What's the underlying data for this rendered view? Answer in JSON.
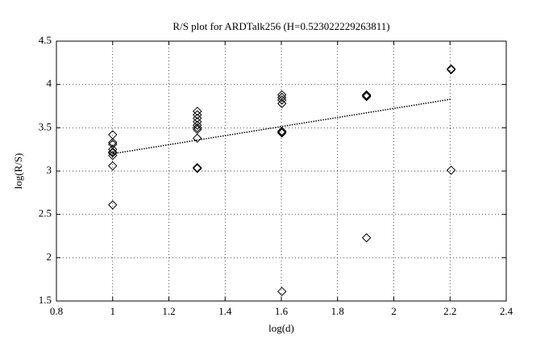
{
  "chart_data": {
    "type": "scatter",
    "title": "R/S plot for ARDTalk256 (H=0.523022229263811)",
    "x_label": "log(d)",
    "y_label": "log(R/S)",
    "xlim": [
      0.8,
      2.4
    ],
    "xticks": [
      0.8,
      1,
      1.2,
      1.4,
      1.6,
      1.8,
      2,
      2.2,
      2.4
    ],
    "ylim": [
      1.5,
      4.5
    ],
    "yticks": [
      1.5,
      2,
      2.5,
      3,
      3.5,
      4,
      4.5
    ],
    "grid": true,
    "series": [
      {
        "type": "scatter",
        "marker": "diamond",
        "color": "#000000",
        "x": [
          1,
          1,
          1,
          1,
          1,
          1,
          1,
          1,
          1,
          1.301,
          1.301,
          1.301,
          1.301,
          1.301,
          1.301,
          1.301,
          1.301,
          1.301,
          1.301,
          1.602,
          1.602,
          1.602,
          1.602,
          1.602,
          1.602,
          1.602,
          1.602,
          1.903,
          1.903,
          1.903,
          1.903,
          2.204,
          2.204,
          2.204
        ],
        "values": [
          3.42,
          3.33,
          3.31,
          3.25,
          3.22,
          3.21,
          3.18,
          3.06,
          2.61,
          3.69,
          3.65,
          3.61,
          3.57,
          3.53,
          3.5,
          3.48,
          3.38,
          3.04,
          3.03,
          3.88,
          3.85,
          3.82,
          3.78,
          3.46,
          3.45,
          3.44,
          1.61,
          3.88,
          3.87,
          3.86,
          2.23,
          4.18,
          4.17,
          3.01
        ]
      },
      {
        "type": "line",
        "style": "dotted",
        "color": "#000000",
        "x": [
          1,
          2.204
        ],
        "values": [
          3.2,
          3.83
        ]
      }
    ]
  }
}
